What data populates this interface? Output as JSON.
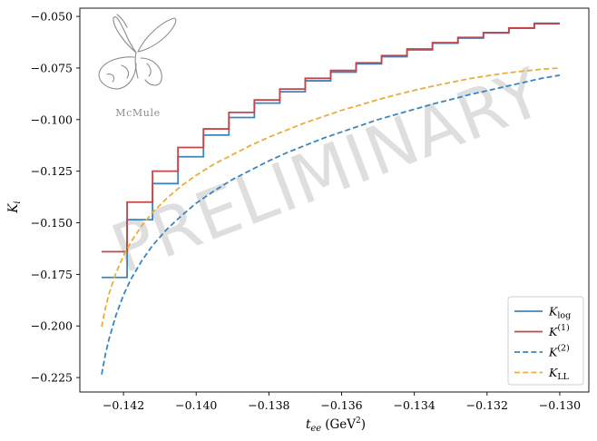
{
  "chart_data": {
    "type": "line",
    "xlabel": "t_ee (GeV²)",
    "xlabel_main": "t",
    "xlabel_sub": "ee",
    "xlabel_unit": "(GeV",
    "xlabel_unit_sup": "2",
    "xlabel_unit_close": ")",
    "ylabel": "K_i",
    "ylabel_main": "K",
    "ylabel_sub": "i",
    "xlim": [
      -0.1432,
      -0.1292
    ],
    "ylim": [
      -0.232,
      -0.046
    ],
    "x_ticks": [
      -0.142,
      -0.14,
      -0.138,
      -0.136,
      -0.134,
      -0.132,
      -0.13
    ],
    "x_tick_labels": [
      "−0.142",
      "−0.140",
      "−0.138",
      "−0.136",
      "−0.134",
      "−0.132",
      "−0.130"
    ],
    "y_ticks": [
      -0.225,
      -0.2,
      -0.175,
      -0.15,
      -0.125,
      -0.1,
      -0.075,
      -0.05
    ],
    "y_tick_labels": [
      "−0.225",
      "−0.200",
      "−0.175",
      "−0.150",
      "−0.125",
      "−0.100",
      "−0.075",
      "−0.050"
    ],
    "grid": false,
    "legend_position": "bottom-right",
    "watermark": "PRELIMINARY",
    "logo_text": "McMule",
    "series": [
      {
        "name": "K_log",
        "name_main": "K",
        "name_sub": "log",
        "name_sup": "",
        "style": "step",
        "line": "solid",
        "color": "#3d84bf",
        "bin_edges": [
          -0.1426,
          -0.1419,
          -0.1412,
          -0.1405,
          -0.1398,
          -0.1391,
          -0.1384,
          -0.1377,
          -0.137,
          -0.1363,
          -0.1356,
          -0.1349,
          -0.1342,
          -0.1335,
          -0.1328,
          -0.1321,
          -0.1314,
          -0.1307,
          -0.13
        ],
        "values": [
          -0.1765,
          -0.1485,
          -0.131,
          -0.118,
          -0.1075,
          -0.099,
          -0.092,
          -0.0865,
          -0.0812,
          -0.077,
          -0.073,
          -0.0695,
          -0.0662,
          -0.063,
          -0.0605,
          -0.058,
          -0.0557,
          -0.0533
        ]
      },
      {
        "name": "K^(1)",
        "name_main": "K",
        "name_sub": "",
        "name_sup": "(1)",
        "style": "step",
        "line": "solid",
        "color": "#c0464a",
        "bin_edges": [
          -0.1426,
          -0.1419,
          -0.1412,
          -0.1405,
          -0.1398,
          -0.1391,
          -0.1384,
          -0.1377,
          -0.137,
          -0.1363,
          -0.1356,
          -0.1349,
          -0.1342,
          -0.1335,
          -0.1328,
          -0.1321,
          -0.1314,
          -0.1307,
          -0.13
        ],
        "values": [
          -0.164,
          -0.14,
          -0.125,
          -0.1135,
          -0.1045,
          -0.0965,
          -0.0905,
          -0.0852,
          -0.08,
          -0.0762,
          -0.0725,
          -0.069,
          -0.0658,
          -0.0627,
          -0.0602,
          -0.0578,
          -0.0556,
          -0.0535
        ]
      },
      {
        "name": "K^(2)",
        "name_main": "K",
        "name_sub": "",
        "name_sup": "(2)",
        "style": "curve",
        "line": "dashed",
        "color": "#3d84bf",
        "x": [
          -0.1426,
          -0.1425,
          -0.1424,
          -0.1422,
          -0.142,
          -0.1418,
          -0.1415,
          -0.1412,
          -0.1408,
          -0.1404,
          -0.14,
          -0.1395,
          -0.139,
          -0.1385,
          -0.138,
          -0.1375,
          -0.137,
          -0.1365,
          -0.136,
          -0.1355,
          -0.135,
          -0.1345,
          -0.134,
          -0.1335,
          -0.133,
          -0.1325,
          -0.132,
          -0.1315,
          -0.131,
          -0.1305,
          -0.13
        ],
        "y": [
          -0.2235,
          -0.214,
          -0.2065,
          -0.1945,
          -0.185,
          -0.1775,
          -0.1685,
          -0.161,
          -0.153,
          -0.1465,
          -0.1405,
          -0.1345,
          -0.129,
          -0.1245,
          -0.12,
          -0.116,
          -0.1125,
          -0.109,
          -0.106,
          -0.103,
          -0.1,
          -0.0975,
          -0.095,
          -0.0925,
          -0.0903,
          -0.088,
          -0.086,
          -0.084,
          -0.082,
          -0.08,
          -0.0785
        ]
      },
      {
        "name": "K_LL",
        "name_main": "K",
        "name_sub": "LL",
        "name_sup": "",
        "style": "curve",
        "line": "dashed",
        "color": "#e8ad3c",
        "x": [
          -0.1426,
          -0.1425,
          -0.1424,
          -0.1422,
          -0.142,
          -0.1418,
          -0.1415,
          -0.1412,
          -0.1408,
          -0.1404,
          -0.14,
          -0.1395,
          -0.139,
          -0.1385,
          -0.138,
          -0.1375,
          -0.137,
          -0.1365,
          -0.136,
          -0.1355,
          -0.135,
          -0.1345,
          -0.134,
          -0.1335,
          -0.133,
          -0.1325,
          -0.132,
          -0.1315,
          -0.131,
          -0.1305,
          -0.13
        ],
        "y": [
          -0.2005,
          -0.1915,
          -0.1845,
          -0.174,
          -0.166,
          -0.1595,
          -0.1515,
          -0.145,
          -0.138,
          -0.132,
          -0.127,
          -0.1215,
          -0.117,
          -0.1125,
          -0.1085,
          -0.105,
          -0.1015,
          -0.0985,
          -0.0955,
          -0.093,
          -0.0903,
          -0.088,
          -0.0858,
          -0.0838,
          -0.082,
          -0.0802,
          -0.0788,
          -0.0775,
          -0.0765,
          -0.0756,
          -0.075
        ]
      }
    ]
  }
}
